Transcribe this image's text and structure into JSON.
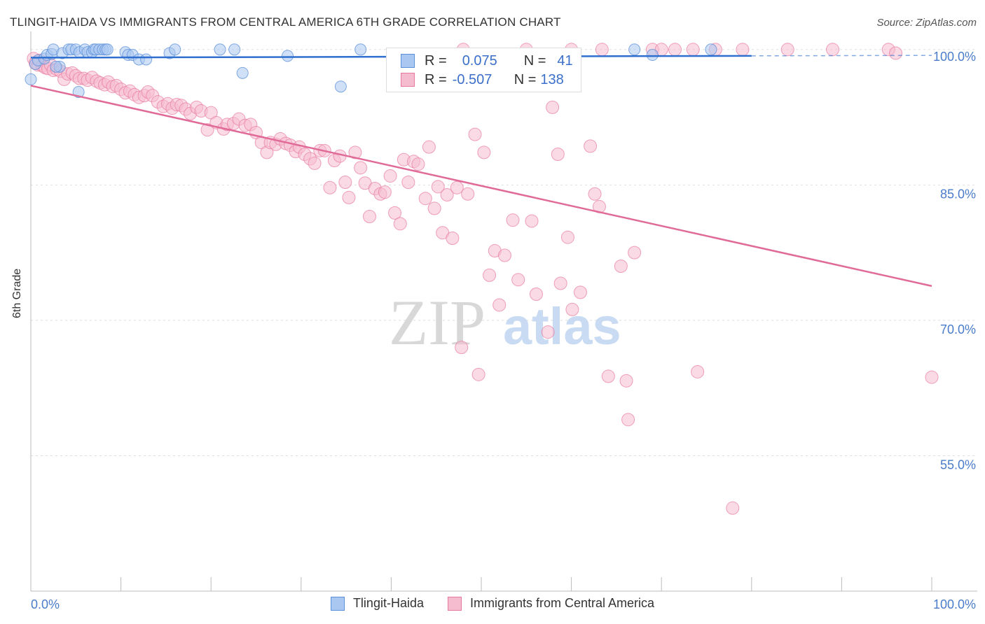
{
  "title": "TLINGIT-HAIDA VS IMMIGRANTS FROM CENTRAL AMERICA 6TH GRADE CORRELATION CHART",
  "source": "Source: ZipAtlas.com",
  "watermark": {
    "zip": "ZIP",
    "atlas": "atlas"
  },
  "colors": {
    "blue": "#5b8fd8",
    "blue_fill": "#a9c7f0",
    "blue_line": "#2f6fcf",
    "pink": "#e87aa0",
    "pink_fill": "#f5bccf",
    "pink_line": "#e06b97",
    "tick_label": "#4a7cc9",
    "grid": "#dddddd"
  },
  "legend_top": {
    "rows": [
      {
        "r_label": "R =",
        "r_value": "0.075",
        "n_label": "N =",
        "n_value": "41",
        "series": "blue"
      },
      {
        "r_label": "R =",
        "r_value": "-0.507",
        "n_label": "N =",
        "n_value": "138",
        "series": "pink"
      }
    ]
  },
  "chart_data": {
    "type": "scatter",
    "title": "TLINGIT-HAIDA VS IMMIGRANTS FROM CENTRAL AMERICA 6TH GRADE CORRELATION CHART",
    "xlabel": "",
    "ylabel": "6th Grade",
    "xlim": [
      0,
      100
    ],
    "ylim": [
      40,
      102
    ],
    "x_tick_labels": [
      "0.0%",
      "100.0%"
    ],
    "y_ticks": [
      55,
      70,
      85,
      100
    ],
    "y_tick_labels": [
      "55.0%",
      "70.0%",
      "85.0%",
      "100.0%"
    ],
    "grid": true,
    "legend_position": "top-center",
    "series": [
      {
        "name": "Tlingit-Haida",
        "color": "blue",
        "r": 0.075,
        "n": 41,
        "trend": {
          "x": [
            0,
            80
          ],
          "y": [
            99.1,
            99.3
          ],
          "dashed_to": 100
        },
        "points": [
          [
            0,
            96.7
          ],
          [
            0.5,
            98.4
          ],
          [
            0.8,
            98.8
          ],
          [
            1.5,
            99.0
          ],
          [
            1.8,
            99.4
          ],
          [
            2.3,
            99.5
          ],
          [
            2.5,
            100
          ],
          [
            3.2,
            98.1
          ],
          [
            3.5,
            99.6
          ],
          [
            4.2,
            100
          ],
          [
            4.5,
            100
          ],
          [
            5,
            100
          ],
          [
            5.4,
            99.7
          ],
          [
            6,
            100
          ],
          [
            6.3,
            99.7
          ],
          [
            6.8,
            99.7
          ],
          [
            7,
            100
          ],
          [
            7.2,
            100
          ],
          [
            7.6,
            100
          ],
          [
            8,
            100
          ],
          [
            8.3,
            100
          ],
          [
            8.5,
            100
          ],
          [
            10.5,
            99.7
          ],
          [
            10.8,
            99.4
          ],
          [
            11.3,
            99.4
          ],
          [
            12,
            98.9
          ],
          [
            12.8,
            98.9
          ],
          [
            15.4,
            99.6
          ],
          [
            16,
            100
          ],
          [
            21,
            100
          ],
          [
            22.6,
            100
          ],
          [
            23.5,
            97.4
          ],
          [
            28.5,
            99.3
          ],
          [
            34.4,
            95.9
          ],
          [
            36.6,
            100
          ],
          [
            45,
            99.3
          ],
          [
            67,
            100
          ],
          [
            69,
            99.4
          ],
          [
            75.5,
            100
          ],
          [
            5.3,
            95.3
          ],
          [
            2.8,
            98.1
          ]
        ]
      },
      {
        "name": "Immigrants from Central America",
        "color": "pink",
        "r": -0.507,
        "n": 138,
        "trend": {
          "x": [
            0,
            100
          ],
          "y": [
            96.0,
            73.8
          ]
        },
        "points": [
          [
            0.3,
            99.0
          ],
          [
            0.5,
            98.5
          ],
          [
            0.8,
            98.3
          ],
          [
            1.0,
            98.8
          ],
          [
            1.3,
            98.2
          ],
          [
            1.6,
            98.0
          ],
          [
            1.9,
            97.9
          ],
          [
            2.2,
            98.3
          ],
          [
            2.5,
            97.7
          ],
          [
            2.9,
            97.8
          ],
          [
            3.3,
            97.6
          ],
          [
            3.7,
            96.7
          ],
          [
            4.1,
            97.3
          ],
          [
            4.6,
            97.4
          ],
          [
            5.0,
            97.1
          ],
          [
            5.4,
            96.8
          ],
          [
            5.9,
            96.8
          ],
          [
            6.3,
            96.6
          ],
          [
            6.8,
            96.9
          ],
          [
            7.3,
            96.5
          ],
          [
            7.7,
            96.3
          ],
          [
            8.2,
            96.1
          ],
          [
            8.6,
            96.4
          ],
          [
            9.1,
            95.9
          ],
          [
            9.5,
            96.0
          ],
          [
            10.0,
            95.6
          ],
          [
            10.5,
            95.2
          ],
          [
            11.0,
            95.4
          ],
          [
            11.5,
            95.0
          ],
          [
            12.0,
            94.7
          ],
          [
            12.6,
            94.9
          ],
          [
            13.0,
            95.3
          ],
          [
            13.5,
            94.9
          ],
          [
            14.1,
            94.2
          ],
          [
            14.7,
            93.7
          ],
          [
            15.2,
            94.0
          ],
          [
            15.7,
            93.5
          ],
          [
            16.2,
            93.9
          ],
          [
            16.7,
            93.8
          ],
          [
            17.2,
            93.4
          ],
          [
            17.7,
            92.9
          ],
          [
            18.4,
            93.6
          ],
          [
            18.9,
            93.2
          ],
          [
            19.6,
            91.1
          ],
          [
            20.0,
            93.0
          ],
          [
            20.6,
            91.9
          ],
          [
            21.4,
            91.2
          ],
          [
            21.8,
            91.7
          ],
          [
            22.5,
            91.8
          ],
          [
            23.1,
            92.3
          ],
          [
            23.8,
            91.6
          ],
          [
            24.4,
            91.7
          ],
          [
            25.0,
            90.8
          ],
          [
            25.6,
            89.7
          ],
          [
            26.2,
            88.6
          ],
          [
            26.6,
            89.7
          ],
          [
            27.2,
            89.5
          ],
          [
            27.7,
            90.1
          ],
          [
            28.3,
            89.6
          ],
          [
            28.8,
            89.4
          ],
          [
            29.4,
            88.7
          ],
          [
            29.8,
            89.2
          ],
          [
            30.4,
            88.4
          ],
          [
            31.0,
            87.9
          ],
          [
            31.5,
            87.4
          ],
          [
            32.1,
            88.8
          ],
          [
            32.6,
            88.8
          ],
          [
            33.2,
            84.7
          ],
          [
            33.7,
            87.7
          ],
          [
            34.3,
            88.2
          ],
          [
            34.9,
            85.3
          ],
          [
            35.3,
            83.6
          ],
          [
            36.0,
            88.6
          ],
          [
            36.6,
            86.9
          ],
          [
            37.1,
            85.2
          ],
          [
            37.6,
            81.5
          ],
          [
            38.2,
            84.6
          ],
          [
            38.8,
            84.0
          ],
          [
            39.3,
            84.2
          ],
          [
            39.9,
            86.0
          ],
          [
            40.4,
            81.9
          ],
          [
            41.0,
            80.7
          ],
          [
            41.4,
            87.8
          ],
          [
            41.9,
            85.3
          ],
          [
            42.5,
            87.6
          ],
          [
            43.0,
            87.3
          ],
          [
            43.8,
            83.5
          ],
          [
            44.2,
            89.2
          ],
          [
            44.8,
            82.4
          ],
          [
            45.2,
            84.8
          ],
          [
            45.7,
            79.7
          ],
          [
            46.2,
            83.9
          ],
          [
            46.8,
            79.1
          ],
          [
            47.3,
            84.7
          ],
          [
            47.8,
            67.0
          ],
          [
            48.5,
            84.0
          ],
          [
            49.3,
            90.6
          ],
          [
            49.7,
            64.0
          ],
          [
            50.3,
            88.6
          ],
          [
            50.9,
            75.0
          ],
          [
            51.5,
            77.7
          ],
          [
            52.0,
            71.7
          ],
          [
            52.6,
            77.2
          ],
          [
            53.5,
            81.1
          ],
          [
            54.1,
            74.5
          ],
          [
            55.6,
            81.0
          ],
          [
            56.1,
            72.9
          ],
          [
            57.4,
            68.7
          ],
          [
            57.9,
            93.6
          ],
          [
            58.5,
            88.4
          ],
          [
            58.8,
            74.1
          ],
          [
            59.6,
            79.2
          ],
          [
            60.1,
            71.2
          ],
          [
            61.0,
            73.1
          ],
          [
            62.1,
            89.3
          ],
          [
            62.6,
            84.0
          ],
          [
            63.1,
            82.6
          ],
          [
            64.1,
            63.8
          ],
          [
            65.5,
            76.0
          ],
          [
            66.1,
            63.3
          ],
          [
            66.3,
            59.0
          ],
          [
            67.0,
            77.5
          ],
          [
            69,
            100
          ],
          [
            70,
            100
          ],
          [
            71.5,
            100
          ],
          [
            73.5,
            100
          ],
          [
            74,
            64.3
          ],
          [
            77.9,
            49.2
          ],
          [
            79,
            100
          ],
          [
            84,
            100
          ],
          [
            55,
            100
          ],
          [
            60,
            100
          ],
          [
            63.4,
            100
          ],
          [
            48,
            100
          ],
          [
            76,
            100
          ],
          [
            95.2,
            100
          ],
          [
            100,
            63.7
          ],
          [
            89,
            100
          ],
          [
            96,
            99.6
          ]
        ]
      }
    ]
  }
}
